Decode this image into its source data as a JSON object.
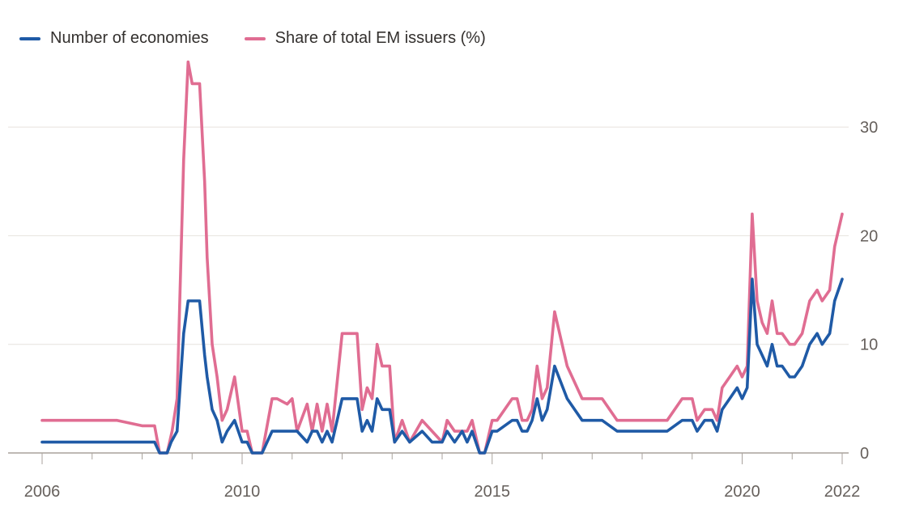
{
  "legend": {
    "series_a": "Number of economies",
    "series_b": "Share of total EM issuers (%)"
  },
  "colors": {
    "series_a": "#1f5aa6",
    "series_b": "#e06d92",
    "grid": "#e6e2dd",
    "axis": "#a8a29c",
    "text": "#66605c"
  },
  "chart_data": {
    "type": "line",
    "title": "",
    "xlabel": "",
    "ylabel": "",
    "xlim": [
      2006.0,
      2022.0
    ],
    "ylim": [
      0,
      35
    ],
    "y_axis_position": "right",
    "grid": "horizontal",
    "legend_position": "top-left",
    "x_ticks": [
      "2006",
      "2010",
      "2015",
      "2020",
      "2022"
    ],
    "x_tick_values": [
      2006,
      2010,
      2015,
      2020,
      2022
    ],
    "y_ticks": [
      0,
      10,
      20,
      30
    ],
    "series": [
      {
        "name": "Number of economies",
        "x": [
          2006.0,
          2008.25,
          2008.35,
          2008.5,
          2008.58,
          2008.7,
          2008.83,
          2008.92,
          2009.0,
          2009.15,
          2009.25,
          2009.3,
          2009.4,
          2009.5,
          2009.6,
          2009.7,
          2009.85,
          2010.0,
          2010.1,
          2010.2,
          2010.4,
          2010.6,
          2010.7,
          2010.9,
          2011.1,
          2011.3,
          2011.4,
          2011.5,
          2011.6,
          2011.7,
          2011.8,
          2012.0,
          2012.1,
          2012.3,
          2012.4,
          2012.5,
          2012.6,
          2012.7,
          2012.8,
          2012.95,
          2013.05,
          2013.2,
          2013.35,
          2013.6,
          2013.8,
          2014.0,
          2014.1,
          2014.25,
          2014.4,
          2014.5,
          2014.6,
          2014.75,
          2014.85,
          2015.0,
          2015.1,
          2015.4,
          2015.5,
          2015.6,
          2015.7,
          2015.8,
          2015.9,
          2016.0,
          2016.1,
          2016.25,
          2016.5,
          2016.8,
          2017.0,
          2017.2,
          2017.5,
          2018.0,
          2018.5,
          2018.8,
          2019.0,
          2019.1,
          2019.25,
          2019.4,
          2019.5,
          2019.6,
          2019.75,
          2019.9,
          2020.0,
          2020.1,
          2020.2,
          2020.3,
          2020.4,
          2020.5,
          2020.6,
          2020.7,
          2020.8,
          2020.95,
          2021.05,
          2021.2,
          2021.35,
          2021.5,
          2021.6,
          2021.75,
          2021.85,
          2022.0
        ],
        "values": [
          1,
          1,
          0,
          0,
          1,
          2,
          11,
          14,
          14,
          14,
          9,
          7,
          4,
          3,
          1,
          2,
          3,
          1,
          1,
          0,
          0,
          2,
          2,
          2,
          2,
          1,
          2,
          2,
          1,
          2,
          1,
          5,
          5,
          5,
          2,
          3,
          2,
          5,
          4,
          4,
          1,
          2,
          1,
          2,
          1,
          1,
          2,
          1,
          2,
          1,
          2,
          0,
          0,
          2,
          2,
          3,
          3,
          2,
          2,
          3,
          5,
          3,
          4,
          8,
          5,
          3,
          3,
          3,
          2,
          2,
          2,
          3,
          3,
          2,
          3,
          3,
          2,
          4,
          5,
          6,
          5,
          6,
          16,
          10,
          9,
          8,
          10,
          8,
          8,
          7,
          7,
          8,
          10,
          11,
          10,
          11,
          14,
          16
        ]
      },
      {
        "name": "Share of total EM issuers (%)",
        "x": [
          2006.0,
          2006.5,
          2007.0,
          2007.5,
          2008.0,
          2008.25,
          2008.35,
          2008.5,
          2008.6,
          2008.7,
          2008.83,
          2008.92,
          2009.0,
          2009.15,
          2009.25,
          2009.3,
          2009.4,
          2009.5,
          2009.6,
          2009.7,
          2009.85,
          2010.0,
          2010.1,
          2010.2,
          2010.4,
          2010.6,
          2010.7,
          2010.9,
          2011.0,
          2011.1,
          2011.3,
          2011.4,
          2011.5,
          2011.6,
          2011.7,
          2011.8,
          2012.0,
          2012.1,
          2012.3,
          2012.4,
          2012.5,
          2012.6,
          2012.7,
          2012.8,
          2012.95,
          2013.05,
          2013.2,
          2013.35,
          2013.6,
          2013.8,
          2014.0,
          2014.1,
          2014.25,
          2014.4,
          2014.5,
          2014.6,
          2014.75,
          2014.85,
          2015.0,
          2015.1,
          2015.4,
          2015.5,
          2015.6,
          2015.7,
          2015.8,
          2015.9,
          2016.0,
          2016.1,
          2016.25,
          2016.5,
          2016.8,
          2017.0,
          2017.2,
          2017.5,
          2018.0,
          2018.5,
          2018.8,
          2019.0,
          2019.1,
          2019.25,
          2019.4,
          2019.5,
          2019.6,
          2019.75,
          2019.9,
          2020.0,
          2020.1,
          2020.2,
          2020.3,
          2020.4,
          2020.5,
          2020.6,
          2020.7,
          2020.8,
          2020.95,
          2021.05,
          2021.2,
          2021.35,
          2021.5,
          2021.6,
          2021.75,
          2021.85,
          2022.0
        ],
        "values": [
          3,
          3,
          3,
          3,
          2.5,
          2.5,
          0,
          0,
          2,
          5,
          27,
          36,
          34,
          34,
          25,
          18,
          10,
          7,
          3,
          4,
          7,
          2,
          2,
          0,
          0,
          5,
          5,
          4.5,
          5,
          2,
          4.5,
          2,
          4.5,
          2,
          4.5,
          2,
          11,
          11,
          11,
          4,
          6,
          5,
          10,
          8,
          8,
          1,
          3,
          1,
          3,
          2,
          1,
          3,
          2,
          2,
          2,
          3,
          0,
          0,
          3,
          3,
          5,
          5,
          3,
          3,
          4,
          8,
          5,
          6,
          13,
          8,
          5,
          5,
          5,
          3,
          3,
          3,
          5,
          5,
          3,
          4,
          4,
          3,
          6,
          7,
          8,
          7,
          8,
          22,
          14,
          12,
          11,
          14,
          11,
          11,
          10,
          10,
          11,
          14,
          15,
          14,
          15,
          19,
          22
        ]
      }
    ]
  }
}
